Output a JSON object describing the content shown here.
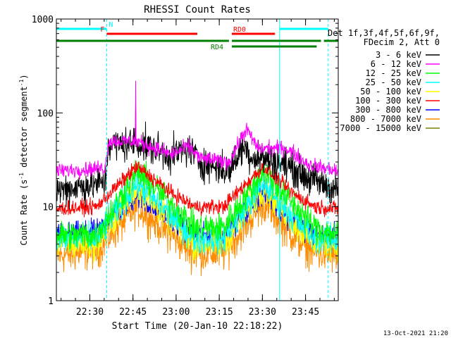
{
  "chart_data": {
    "type": "line",
    "title": "RHESSI Count Rates",
    "xlabel": "Start Time (20-Jan-10 22:18:22)",
    "ylabel_prefix": "Count Rate (s",
    "ylabel_sup1": "-1",
    "ylabel_mid": " detector segment",
    "ylabel_sup2": "-1",
    "ylabel_suffix": ")",
    "yscale": "log",
    "ylim": [
      1,
      1000
    ],
    "xlim_minutes": [
      0,
      98
    ],
    "y_ticks": [
      {
        "value": 1,
        "label": "1"
      },
      {
        "value": 10,
        "label": "10"
      },
      {
        "value": 100,
        "label": "100"
      },
      {
        "value": 1000,
        "label": "1000"
      }
    ],
    "x_ticks": [
      {
        "value": 11.63,
        "label": "22:30"
      },
      {
        "value": 26.63,
        "label": "22:45"
      },
      {
        "value": 41.63,
        "label": "23:00"
      },
      {
        "value": 56.63,
        "label": "23:15"
      },
      {
        "value": 71.63,
        "label": "23:30"
      },
      {
        "value": 86.63,
        "label": "23:45"
      }
    ],
    "legend_header": [
      "Det 1f,3f,4f,5f,6f,9f,",
      "FDecim 2, Att 0"
    ],
    "series": [
      {
        "name": "3 - 6 keV",
        "color": "#000000",
        "anchors": [
          [
            0,
            15
          ],
          [
            17,
            18
          ],
          [
            18,
            45
          ],
          [
            28,
            48
          ],
          [
            40,
            35
          ],
          [
            46,
            42
          ],
          [
            50,
            30
          ],
          [
            60,
            24
          ],
          [
            65,
            45
          ],
          [
            68,
            34
          ],
          [
            72,
            33
          ],
          [
            80,
            28
          ],
          [
            88,
            20
          ],
          [
            98,
            15
          ]
        ],
        "noise": 0.09
      },
      {
        "name": "6 - 12 keV",
        "color": "#ff00ff",
        "anchors": [
          [
            0,
            24
          ],
          [
            17,
            26
          ],
          [
            18,
            50
          ],
          [
            28,
            50
          ],
          [
            40,
            36
          ],
          [
            46,
            44
          ],
          [
            50,
            33
          ],
          [
            60,
            30
          ],
          [
            66,
            68
          ],
          [
            70,
            42
          ],
          [
            80,
            42
          ],
          [
            88,
            28
          ],
          [
            98,
            24
          ]
        ],
        "noise": 0.04
      },
      {
        "name": "12 - 25 keV",
        "color": "#00ff00",
        "anchors": [
          [
            0,
            5
          ],
          [
            14,
            5
          ],
          [
            28,
            24
          ],
          [
            40,
            11
          ],
          [
            48,
            6
          ],
          [
            58,
            6
          ],
          [
            72,
            24
          ],
          [
            82,
            11
          ],
          [
            90,
            6
          ],
          [
            98,
            5
          ]
        ],
        "noise": 0.08
      },
      {
        "name": "25 - 50 keV",
        "color": "#00ffff",
        "anchors": [
          [
            0,
            4.6
          ],
          [
            14,
            4.6
          ],
          [
            28,
            18
          ],
          [
            40,
            8
          ],
          [
            48,
            4.6
          ],
          [
            58,
            4.6
          ],
          [
            72,
            18
          ],
          [
            82,
            8
          ],
          [
            90,
            4.6
          ],
          [
            98,
            4.4
          ]
        ],
        "noise": 0.08
      },
      {
        "name": "50 - 100 keV",
        "color": "#ffff00",
        "anchors": [
          [
            0,
            4
          ],
          [
            14,
            4
          ],
          [
            28,
            16
          ],
          [
            40,
            7
          ],
          [
            48,
            4
          ],
          [
            58,
            4
          ],
          [
            72,
            16
          ],
          [
            82,
            7
          ],
          [
            90,
            4
          ],
          [
            98,
            4
          ]
        ],
        "noise": 0.08
      },
      {
        "name": "100 - 300 keV",
        "color": "#ff0000",
        "anchors": [
          [
            0,
            9.5
          ],
          [
            14,
            10
          ],
          [
            28,
            27
          ],
          [
            40,
            14
          ],
          [
            48,
            10
          ],
          [
            58,
            10
          ],
          [
            72,
            27
          ],
          [
            82,
            14
          ],
          [
            90,
            10
          ],
          [
            98,
            9.5
          ]
        ],
        "noise": 0.04
      },
      {
        "name": "300 - 800 keV",
        "color": "#0000ff",
        "anchors": [
          [
            0,
            5
          ],
          [
            14,
            5.5
          ],
          [
            28,
            13
          ],
          [
            40,
            7
          ],
          [
            48,
            5
          ],
          [
            58,
            5
          ],
          [
            72,
            14
          ],
          [
            82,
            7
          ],
          [
            90,
            5
          ],
          [
            98,
            5
          ]
        ],
        "noise": 0.06
      },
      {
        "name": "800 - 7000 keV",
        "color": "#ff8c00",
        "anchors": [
          [
            0,
            3
          ],
          [
            14,
            3.5
          ],
          [
            28,
            10
          ],
          [
            40,
            5
          ],
          [
            48,
            3.2
          ],
          [
            58,
            3.2
          ],
          [
            72,
            11
          ],
          [
            82,
            5
          ],
          [
            90,
            3.2
          ],
          [
            98,
            3
          ]
        ],
        "noise": 0.1
      },
      {
        "name": "7000 - 15000 keV",
        "color": "#808000",
        "anchors": [],
        "noise": 0
      }
    ],
    "spike": {
      "time": 27.6,
      "value": 220,
      "series": "6 - 12 keV"
    },
    "spike_black": {
      "time": 27.6,
      "value": 125
    },
    "vlines": [
      {
        "time": 0,
        "solid": true
      },
      {
        "time": 17.5,
        "solid": false
      },
      {
        "time": 77.6,
        "solid": true
      },
      {
        "time": 94.5,
        "solid": false
      }
    ],
    "flag_bars": [
      {
        "label": "N",
        "color": "#00ffff",
        "segments": [
          [
            0,
            17.5
          ],
          [
            77.6,
            94.5
          ]
        ],
        "level": 0
      },
      {
        "label": "F",
        "color": "#ff0000",
        "segments": [
          [
            17.5,
            49
          ]
        ],
        "level": 1
      },
      {
        "label": "RD0",
        "color": "#ff0000",
        "segments": [
          [
            61,
            76
          ]
        ],
        "level": 1
      },
      {
        "label": "",
        "color": "#008000",
        "segments": [
          [
            0,
            60
          ],
          [
            61,
            92
          ],
          [
            93,
            98
          ]
        ],
        "level": 2
      },
      {
        "label": "RD4",
        "color": "#008000",
        "segments": [
          [
            61,
            90.5
          ]
        ],
        "level": 3
      }
    ],
    "footer_date": "13-Oct-2021 21:20"
  }
}
